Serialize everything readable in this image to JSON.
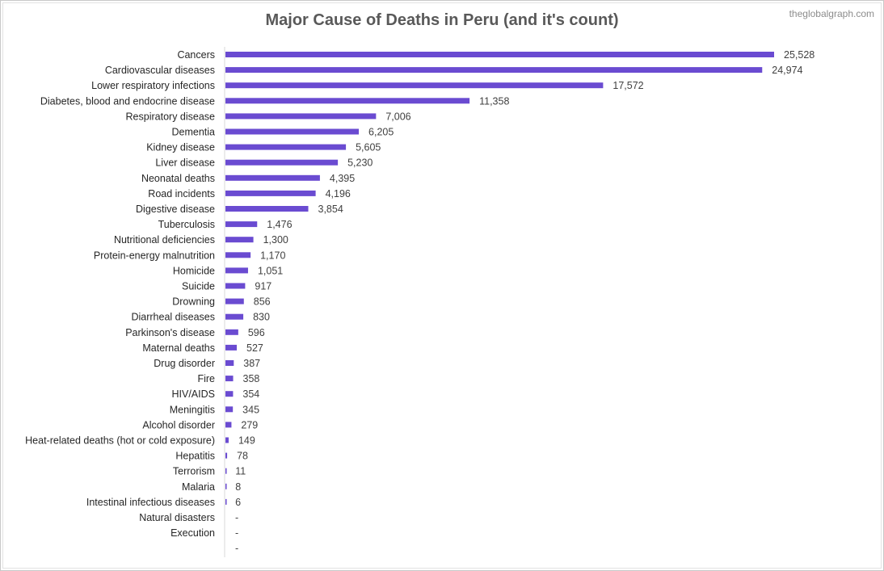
{
  "watermark": "theglobalgraph.com",
  "colors": {
    "bar": "#6a4bd1",
    "axis": "#d9d9d9",
    "label": "#262626",
    "title": "#595959"
  },
  "chart_data": {
    "type": "bar",
    "orientation": "horizontal",
    "title": "Major Cause of Deaths in Peru (and it's count)",
    "xlabel": "",
    "ylabel": "",
    "grid": false,
    "legend": "none",
    "xlim": [
      0,
      25528
    ],
    "categories": [
      "Cancers",
      "Cardiovascular diseases",
      "Lower respiratory infections",
      "Diabetes, blood and endocrine disease",
      "Respiratory disease",
      "Dementia",
      "Kidney disease",
      "Liver disease",
      "Neonatal deaths",
      "Road incidents",
      "Digestive disease",
      "Tuberculosis",
      "Nutritional deficiencies",
      "Protein-energy malnutrition",
      "Homicide",
      "Suicide",
      "Drowning",
      "Diarrheal diseases",
      "Parkinson's disease",
      "Maternal deaths",
      "Drug disorder",
      "Fire",
      "HIV/AIDS",
      "Meningitis",
      "Alcohol disorder",
      "Heat-related deaths (hot or cold exposure)",
      "Hepatitis",
      "Terrorism",
      "Malaria",
      "Intestinal infectious diseases",
      "Natural disasters",
      "Execution",
      ""
    ],
    "values": [
      25528,
      24974,
      17572,
      11358,
      7006,
      6205,
      5605,
      5230,
      4395,
      4196,
      3854,
      1476,
      1300,
      1170,
      1051,
      917,
      856,
      830,
      596,
      527,
      387,
      358,
      354,
      345,
      279,
      149,
      78,
      11,
      8,
      6,
      0,
      0,
      0
    ],
    "value_labels": [
      "25,528",
      "24,974",
      "17,572",
      "11,358",
      "7,006",
      "6,205",
      "5,605",
      "5,230",
      "4,395",
      "4,196",
      "3,854",
      "1,476",
      "1,300",
      "1,170",
      "1,051",
      "917",
      "856",
      "830",
      "596",
      "527",
      "387",
      "358",
      "354",
      "345",
      "279",
      "149",
      "78",
      "11",
      "8",
      "6",
      "-",
      "-",
      "-"
    ]
  }
}
